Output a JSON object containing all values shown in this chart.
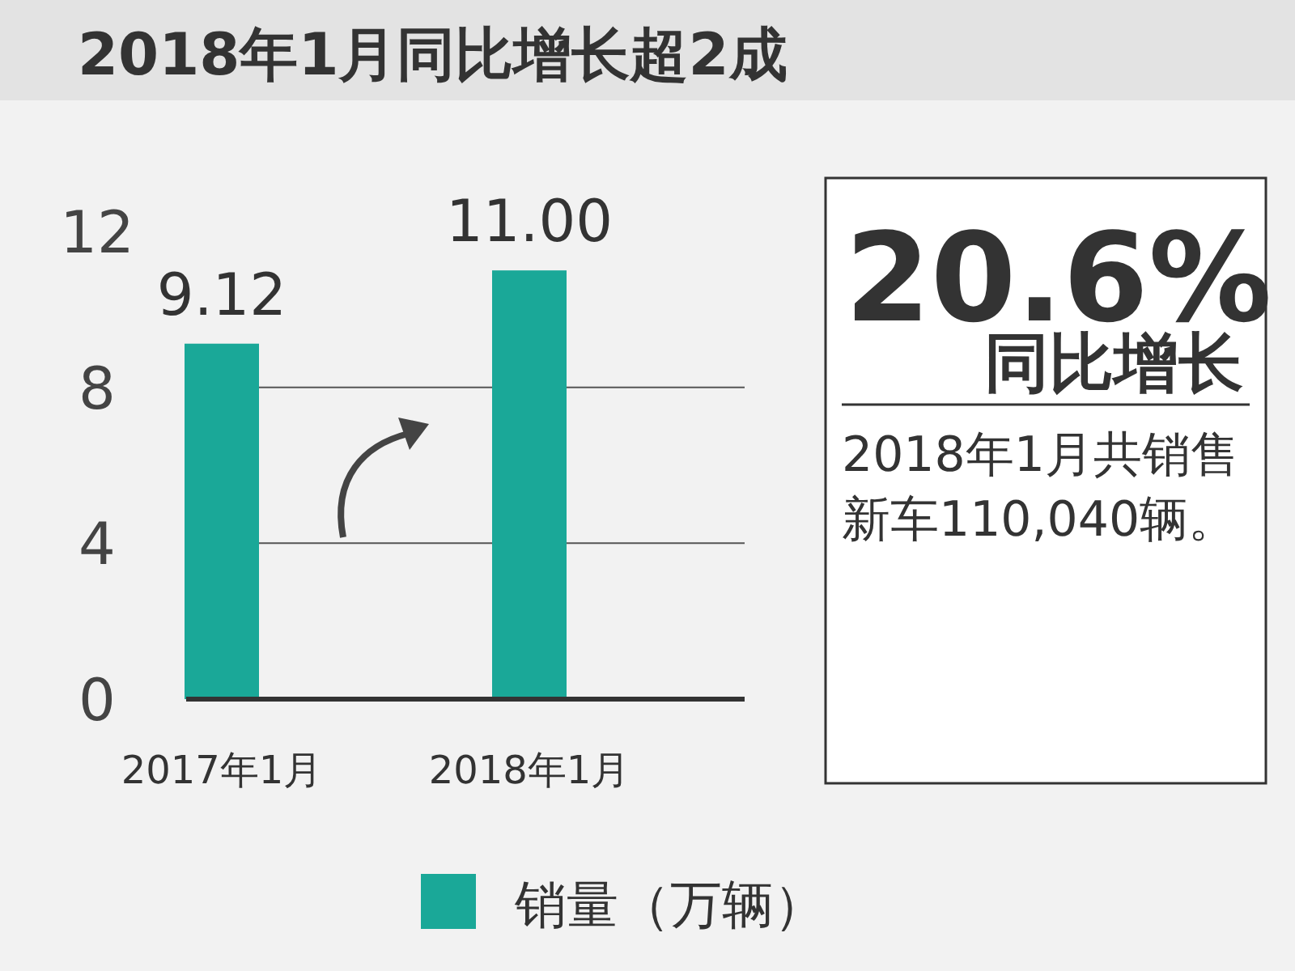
{
  "chart_data": {
    "type": "bar",
    "title": "2018年1月同比增长超2成",
    "categories": [
      "2017年1月",
      "2018年1月"
    ],
    "series": [
      {
        "name": "销量（万辆）",
        "color": "#1aa898",
        "values": [
          9.12,
          11.0
        ],
        "value_labels": [
          "9.12",
          "11.00"
        ]
      }
    ],
    "ylim": [
      0,
      12
    ],
    "yticks": [
      0,
      4,
      8,
      12
    ],
    "grid": "y",
    "legend": "bottom",
    "annotations": [
      "20.6%",
      "同比增长",
      "2018年1月共销售新车110,040辆。"
    ]
  }
}
